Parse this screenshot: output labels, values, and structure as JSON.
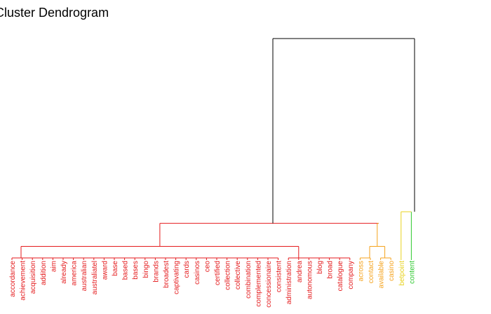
{
  "chart_data": {
    "type": "dendrogram",
    "title": "Cluster Dendrogram",
    "height_ylim": [
      0,
      1.0
    ],
    "leaves": [
      {
        "label": "accordance",
        "color": "#e41a1c"
      },
      {
        "label": "achievement",
        "color": "#e41a1c"
      },
      {
        "label": "acquisition",
        "color": "#e41a1c"
      },
      {
        "label": "addition",
        "color": "#e41a1c"
      },
      {
        "label": "aim",
        "color": "#e41a1c"
      },
      {
        "label": "already",
        "color": "#e41a1c"
      },
      {
        "label": "america",
        "color": "#e41a1c"
      },
      {
        "label": "australian",
        "color": "#e41a1c"
      },
      {
        "label": "australiatel",
        "color": "#e41a1c"
      },
      {
        "label": "award",
        "color": "#e41a1c"
      },
      {
        "label": "base",
        "color": "#e41a1c"
      },
      {
        "label": "based",
        "color": "#e41a1c"
      },
      {
        "label": "bases",
        "color": "#e41a1c"
      },
      {
        "label": "bingo",
        "color": "#e41a1c"
      },
      {
        "label": "brands",
        "color": "#e41a1c"
      },
      {
        "label": "broadest",
        "color": "#e41a1c"
      },
      {
        "label": "captivating",
        "color": "#e41a1c"
      },
      {
        "label": "cards",
        "color": "#e41a1c"
      },
      {
        "label": "casinos",
        "color": "#e41a1c"
      },
      {
        "label": "ceo",
        "color": "#e41a1c"
      },
      {
        "label": "certified",
        "color": "#e41a1c"
      },
      {
        "label": "collection",
        "color": "#e41a1c"
      },
      {
        "label": "collective",
        "color": "#e41a1c"
      },
      {
        "label": "combination",
        "color": "#e41a1c"
      },
      {
        "label": "complemented",
        "color": "#e41a1c"
      },
      {
        "label": "concessionaire",
        "color": "#e41a1c"
      },
      {
        "label": "consistent",
        "color": "#e41a1c"
      },
      {
        "label": "administration",
        "color": "#e41a1c"
      },
      {
        "label": "andrea",
        "color": "#e41a1c"
      },
      {
        "label": "autonomous",
        "color": "#e41a1c"
      },
      {
        "label": "blog",
        "color": "#e41a1c"
      },
      {
        "label": "broad",
        "color": "#e41a1c"
      },
      {
        "label": "catalogue",
        "color": "#e41a1c"
      },
      {
        "label": "company",
        "color": "#e41a1c"
      },
      {
        "label": "across",
        "color": "#f5a21b"
      },
      {
        "label": "contact",
        "color": "#f5a21b"
      },
      {
        "label": "available",
        "color": "#f5a21b"
      },
      {
        "label": "casino",
        "color": "#f5a21b"
      },
      {
        "label": "betpoint",
        "color": "#e8d21d"
      },
      {
        "label": "content",
        "color": "#2dc82d"
      }
    ],
    "merges": [
      {
        "left": "leaves 0-26",
        "right": "leaves 27-33",
        "height": 0.05,
        "color": "#e41a1c"
      },
      {
        "left": "leaves 34-35",
        "right": "leaves 36-37",
        "height": 0.05,
        "color": "#f5a21b"
      },
      {
        "left": "red cluster",
        "right": "orange cluster",
        "height": 0.15,
        "color": "#f5a21b"
      },
      {
        "left": "betpoint",
        "right": "content",
        "height": 0.2,
        "color": "#e8d21d"
      },
      {
        "left": "left group",
        "right": "right group",
        "height": 0.95,
        "color": "#000000"
      }
    ],
    "colors": {
      "red": "#e41a1c",
      "orange": "#f5a21b",
      "yellow": "#e8d21d",
      "green": "#2dc82d",
      "root": "#000000"
    }
  }
}
